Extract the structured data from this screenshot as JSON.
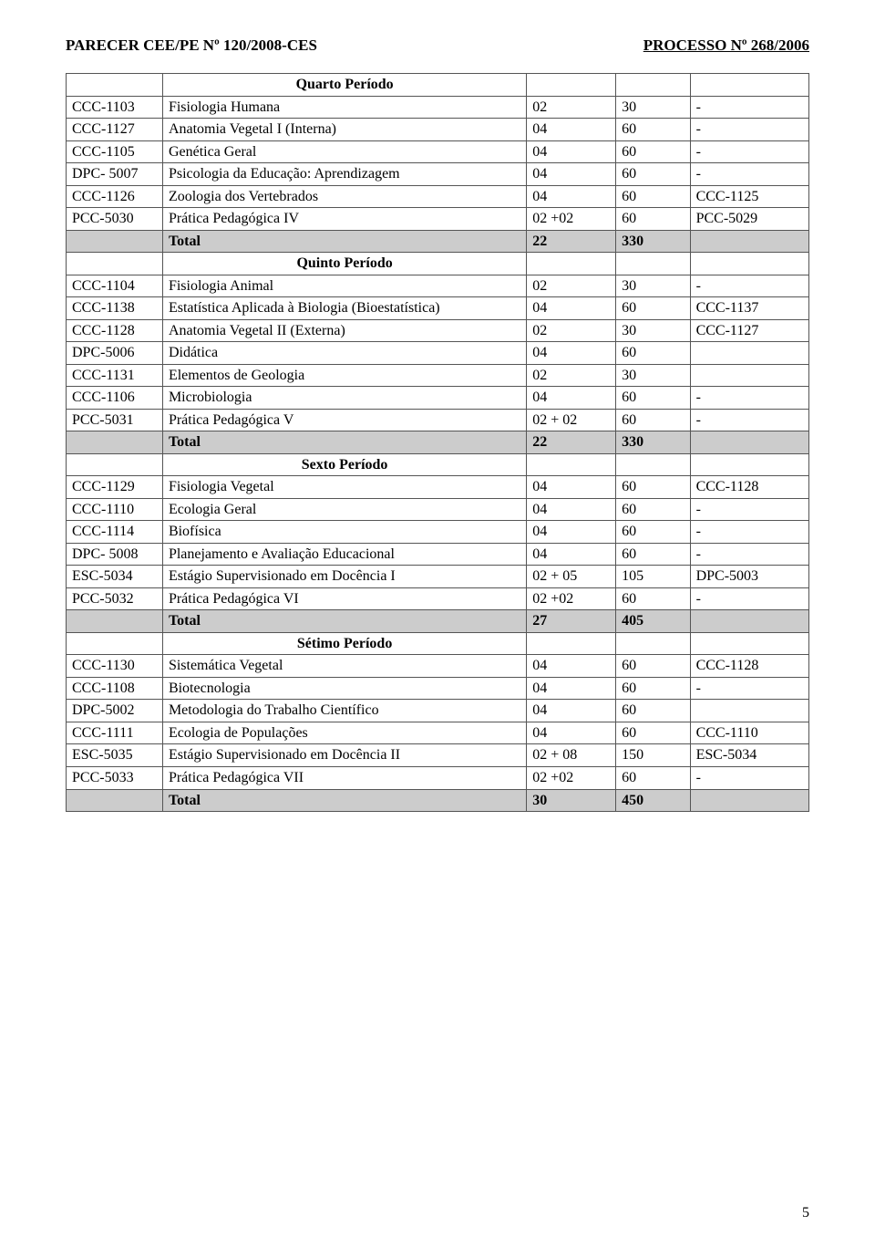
{
  "header": {
    "left": "PARECER CEE/PE Nº 120/2008-CES",
    "right": "PROCESSO Nº 268/2006"
  },
  "page_number": "5",
  "colors": {
    "total_bg": "#cccccc",
    "border": "#555555",
    "text": "#000000",
    "background": "#ffffff"
  },
  "columns": {
    "code_width": "13%",
    "desc_width": "49%",
    "a_width": "12%",
    "b_width": "10%",
    "c_width": "16%"
  },
  "sections": [
    {
      "title": "Quarto Período",
      "rows": [
        {
          "code": "CCC-1103",
          "desc": "Fisiologia Humana",
          "a": "02",
          "b": "30",
          "c": "-"
        },
        {
          "code": "CCC-1127",
          "desc": "Anatomia Vegetal I (Interna)",
          "a": "04",
          "b": "60",
          "c": "-"
        },
        {
          "code": "CCC-1105",
          "desc": "Genética Geral",
          "a": "04",
          "b": "60",
          "c": "-"
        },
        {
          "code": "DPC- 5007",
          "desc": "Psicologia da Educação: Aprendizagem",
          "a": "04",
          "b": "60",
          "c": "-"
        },
        {
          "code": "CCC-1126",
          "desc": "Zoologia dos Vertebrados",
          "a": "04",
          "b": "60",
          "c": "CCC-1125"
        },
        {
          "code": "PCC-5030",
          "desc": "Prática Pedagógica IV",
          "a": "02 +02",
          "b": "60",
          "c": "PCC-5029"
        }
      ],
      "total": {
        "label": "Total",
        "a": "22",
        "b": "330",
        "c": ""
      }
    },
    {
      "title": "Quinto Período",
      "rows": [
        {
          "code": "CCC-1104",
          "desc": "Fisiologia Animal",
          "a": "02",
          "b": "30",
          "c": "-"
        },
        {
          "code": "CCC-1138",
          "desc": "Estatística Aplicada à Biologia (Bioestatística)",
          "a": "04",
          "b": "60",
          "c": "CCC-1137"
        },
        {
          "code": "CCC-1128",
          "desc": "Anatomia Vegetal II (Externa)",
          "a": "02",
          "b": "30",
          "c": "CCC-1127"
        },
        {
          "code": "DPC-5006",
          "desc": "Didática",
          "a": "04",
          "b": "60",
          "c": ""
        },
        {
          "code": "CCC-1131",
          "desc": "Elementos de Geologia",
          "a": "02",
          "b": "30",
          "c": ""
        },
        {
          "code": "CCC-1106",
          "desc": "Microbiologia",
          "a": "04",
          "b": "60",
          "c": "-"
        },
        {
          "code": "PCC-5031",
          "desc": "Prática Pedagógica V",
          "a": "02 + 02",
          "b": "60",
          "c": "-"
        }
      ],
      "total": {
        "label": "Total",
        "a": "22",
        "b": "330",
        "c": ""
      }
    },
    {
      "title": "Sexto Período",
      "rows": [
        {
          "code": "CCC-1129",
          "desc": "Fisiologia Vegetal",
          "a": "04",
          "b": "60",
          "c": "CCC-1128"
        },
        {
          "code": "CCC-1110",
          "desc": "Ecologia Geral",
          "a": "04",
          "b": "60",
          "c": "-"
        },
        {
          "code": "CCC-1114",
          "desc": "Biofísica",
          "a": "04",
          "b": "60",
          "c": "-"
        },
        {
          "code": "DPC- 5008",
          "desc": "Planejamento e Avaliação Educacional",
          "a": "04",
          "b": "60",
          "c": "-"
        },
        {
          "code": "ESC-5034",
          "desc": "Estágio Supervisionado em Docência I",
          "a": "02 + 05",
          "b": "105",
          "c": "DPC-5003"
        },
        {
          "code": "PCC-5032",
          "desc": "Prática Pedagógica VI",
          "a": "02 +02",
          "b": "60",
          "c": "-"
        }
      ],
      "total": {
        "label": "Total",
        "a": "27",
        "b": "405",
        "c": ""
      }
    },
    {
      "title": "Sétimo Período",
      "rows": [
        {
          "code": "CCC-1130",
          "desc": "Sistemática Vegetal",
          "a": "04",
          "b": "60",
          "c": "CCC-1128"
        },
        {
          "code": "CCC-1108",
          "desc": "Biotecnologia",
          "a": "04",
          "b": "60",
          "c": "-"
        },
        {
          "code": "DPC-5002",
          "desc": "Metodologia do Trabalho Científico",
          "a": "04",
          "b": "60",
          "c": ""
        },
        {
          "code": "CCC-1111",
          "desc": "Ecologia de Populações",
          "a": "04",
          "b": "60",
          "c": "CCC-1110"
        },
        {
          "code": "ESC-5035",
          "desc": "Estágio Supervisionado  em Docência II",
          "a": "02 + 08",
          "b": "150",
          "c": "ESC-5034"
        },
        {
          "code": "PCC-5033",
          "desc": "Prática Pedagógica VII",
          "a": "02 +02",
          "b": "60",
          "c": "-"
        }
      ],
      "total": {
        "label": "Total",
        "a": "30",
        "b": "450",
        "c": ""
      }
    }
  ]
}
